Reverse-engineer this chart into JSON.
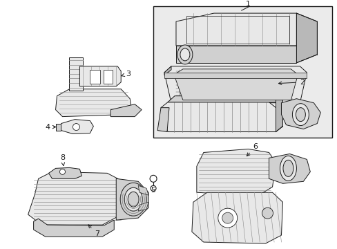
{
  "bg_color": "#ffffff",
  "line_color": "#1a1a1a",
  "shading_light": "#e8e8e8",
  "shading_mid": "#d0d0d0",
  "shading_dark": "#b8b8b8",
  "box_bg": "#ebebeb",
  "figsize": [
    4.89,
    3.6
  ],
  "dpi": 100,
  "label_fs": 8,
  "arrow_lw": 0.7,
  "part_lw": 0.7
}
